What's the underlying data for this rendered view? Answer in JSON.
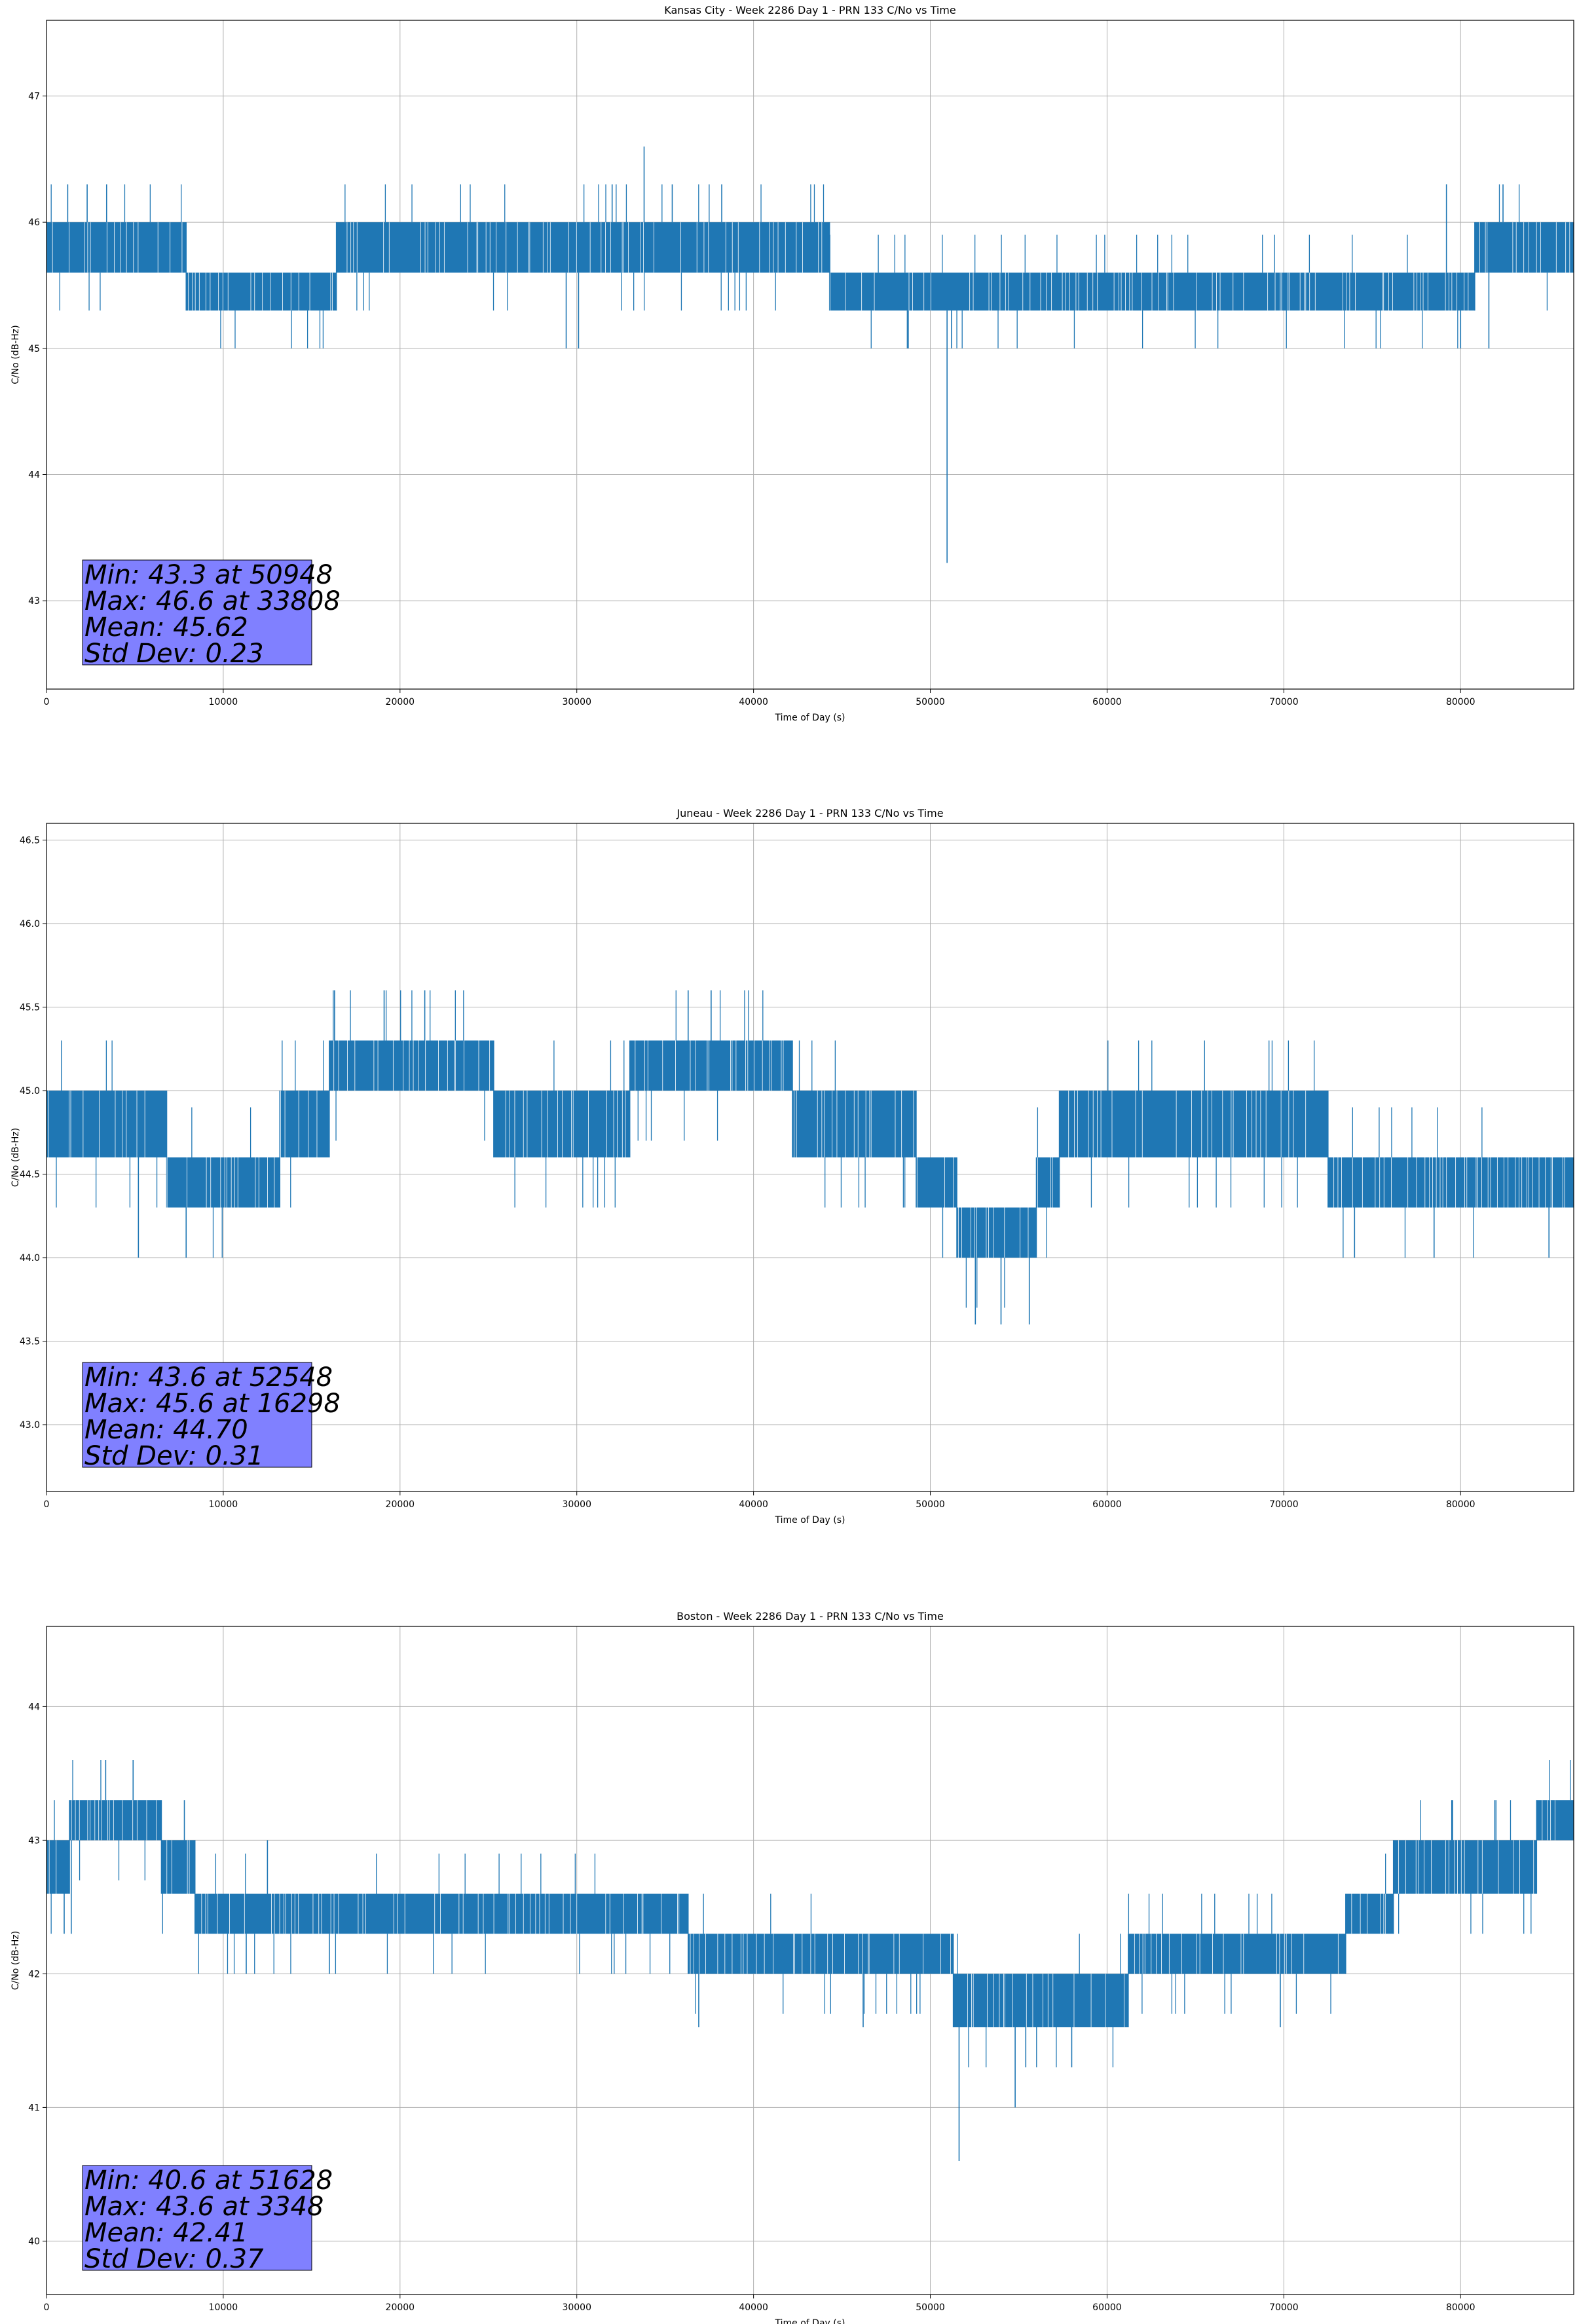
{
  "chart_data": [
    {
      "type": "line",
      "title": "Kansas City - Week 2286 Day 1 - PRN 133 C/No vs Time",
      "xlabel": "Time of Day (s)",
      "ylabel": "C/No (dB-Hz)",
      "xlim": [
        0,
        86400
      ],
      "ylim": [
        42.3,
        47.6
      ],
      "xticks": [
        0,
        10000,
        20000,
        30000,
        40000,
        50000,
        60000,
        70000,
        80000
      ],
      "yticks": [
        43,
        44,
        45,
        46,
        47
      ],
      "ytick_labels": [
        "43",
        "44",
        "45",
        "46",
        "47"
      ],
      "grid": true,
      "color": "#1f77b4",
      "band_segments": [
        {
          "x": [
            0,
            7900
          ],
          "low": 45.6,
          "high": 46.0
        },
        {
          "x": [
            7900,
            16400
          ],
          "low": 45.3,
          "high": 45.6
        },
        {
          "x": [
            16400,
            44300
          ],
          "low": 45.6,
          "high": 46.0
        },
        {
          "x": [
            44300,
            80800
          ],
          "low": 45.3,
          "high": 45.6
        },
        {
          "x": [
            80800,
            86400
          ],
          "low": 45.6,
          "high": 46.0
        }
      ],
      "spikes": [
        {
          "x": 50948,
          "y": 43.3
        },
        {
          "x": 33808,
          "y": 46.6
        },
        {
          "x": 29400,
          "y": 45.0
        },
        {
          "x": 30100,
          "y": 45.0
        },
        {
          "x": 48700,
          "y": 45.0
        },
        {
          "x": 51200,
          "y": 45.0
        },
        {
          "x": 80000,
          "y": 45.0
        },
        {
          "x": 81600,
          "y": 45.0
        },
        {
          "x": 1200,
          "y": 46.3
        },
        {
          "x": 2300,
          "y": 46.3
        },
        {
          "x": 3400,
          "y": 46.3
        },
        {
          "x": 32000,
          "y": 46.3
        },
        {
          "x": 35400,
          "y": 46.3
        },
        {
          "x": 38200,
          "y": 46.3
        },
        {
          "x": 79200,
          "y": 46.3
        },
        {
          "x": 82400,
          "y": 46.3
        }
      ],
      "stats": {
        "min": "Min: 43.3 at 50948",
        "max": "Max: 46.6 at 33808",
        "mean": "Mean: 45.62",
        "std": "Std Dev: 0.23"
      }
    },
    {
      "type": "line",
      "title": "Juneau - Week 2286 Day 1 - PRN 133 C/No vs Time",
      "xlabel": "Time of Day (s)",
      "ylabel": "C/No (dB-Hz)",
      "xlim": [
        0,
        86400
      ],
      "ylim": [
        42.6,
        46.6
      ],
      "xticks": [
        0,
        10000,
        20000,
        30000,
        40000,
        50000,
        60000,
        70000,
        80000
      ],
      "yticks": [
        43.0,
        43.5,
        44.0,
        44.5,
        45.0,
        45.5,
        46.0,
        46.5
      ],
      "ytick_labels": [
        "43.0",
        "43.5",
        "44.0",
        "44.5",
        "45.0",
        "45.5",
        "46.0",
        "46.5"
      ],
      "grid": true,
      "color": "#1f77b4",
      "band_segments": [
        {
          "x": [
            0,
            6800
          ],
          "low": 44.6,
          "high": 45.0
        },
        {
          "x": [
            6800,
            13200
          ],
          "low": 44.3,
          "high": 44.6
        },
        {
          "x": [
            13200,
            16000
          ],
          "low": 44.6,
          "high": 45.0
        },
        {
          "x": [
            16000,
            25300
          ],
          "low": 45.0,
          "high": 45.3
        },
        {
          "x": [
            25300,
            33000
          ],
          "low": 44.6,
          "high": 45.0
        },
        {
          "x": [
            33000,
            42200
          ],
          "low": 45.0,
          "high": 45.3
        },
        {
          "x": [
            42200,
            49200
          ],
          "low": 44.6,
          "high": 45.0
        },
        {
          "x": [
            49200,
            51500
          ],
          "low": 44.3,
          "high": 44.6
        },
        {
          "x": [
            51500,
            56000
          ],
          "low": 44.0,
          "high": 44.3
        },
        {
          "x": [
            56000,
            57300
          ],
          "low": 44.3,
          "high": 44.6
        },
        {
          "x": [
            57300,
            72500
          ],
          "low": 44.6,
          "high": 45.0
        },
        {
          "x": [
            72500,
            86400
          ],
          "low": 44.3,
          "high": 44.6
        }
      ],
      "spikes": [
        {
          "x": 52548,
          "y": 43.6
        },
        {
          "x": 16298,
          "y": 45.6
        },
        {
          "x": 19100,
          "y": 45.6
        },
        {
          "x": 21400,
          "y": 45.6
        },
        {
          "x": 36300,
          "y": 45.6
        },
        {
          "x": 37600,
          "y": 45.6
        },
        {
          "x": 54000,
          "y": 43.6
        },
        {
          "x": 55600,
          "y": 43.6
        },
        {
          "x": 5200,
          "y": 44.0
        },
        {
          "x": 7900,
          "y": 44.0
        },
        {
          "x": 74000,
          "y": 44.0
        },
        {
          "x": 78500,
          "y": 44.0
        },
        {
          "x": 85000,
          "y": 44.0
        }
      ],
      "stats": {
        "min": "Min: 43.6 at 52548",
        "max": "Max: 45.6 at 16298",
        "mean": "Mean: 44.70",
        "std": "Std Dev: 0.31"
      }
    },
    {
      "type": "line",
      "title": "Boston - Week 2286 Day 1 - PRN 133 C/No vs Time",
      "xlabel": "Time of Day (s)",
      "ylabel": "C/No (dB-Hz)",
      "xlim": [
        0,
        86400
      ],
      "ylim": [
        39.6,
        44.6
      ],
      "xticks": [
        0,
        10000,
        20000,
        30000,
        40000,
        50000,
        60000,
        70000,
        80000
      ],
      "yticks": [
        40,
        41,
        42,
        43,
        44
      ],
      "ytick_labels": [
        "40",
        "41",
        "42",
        "43",
        "44"
      ],
      "grid": true,
      "color": "#1f77b4",
      "band_segments": [
        {
          "x": [
            0,
            1300
          ],
          "low": 42.6,
          "high": 43.0
        },
        {
          "x": [
            1300,
            6500
          ],
          "low": 43.0,
          "high": 43.3
        },
        {
          "x": [
            6500,
            8400
          ],
          "low": 42.6,
          "high": 43.0
        },
        {
          "x": [
            8400,
            36300
          ],
          "low": 42.3,
          "high": 42.6
        },
        {
          "x": [
            36300,
            51300
          ],
          "low": 42.0,
          "high": 42.3
        },
        {
          "x": [
            51300,
            61200
          ],
          "low": 41.6,
          "high": 42.0
        },
        {
          "x": [
            61200,
            73500
          ],
          "low": 42.0,
          "high": 42.3
        },
        {
          "x": [
            73500,
            76200
          ],
          "low": 42.3,
          "high": 42.6
        },
        {
          "x": [
            76200,
            84300
          ],
          "low": 42.6,
          "high": 43.0
        },
        {
          "x": [
            84300,
            86400
          ],
          "low": 43.0,
          "high": 43.3
        }
      ],
      "spikes": [
        {
          "x": 51628,
          "y": 40.6
        },
        {
          "x": 3348,
          "y": 43.6
        },
        {
          "x": 4900,
          "y": 43.6
        },
        {
          "x": 54800,
          "y": 41.0
        },
        {
          "x": 55400,
          "y": 41.3
        },
        {
          "x": 58000,
          "y": 41.3
        },
        {
          "x": 36900,
          "y": 41.6
        },
        {
          "x": 46200,
          "y": 41.6
        },
        {
          "x": 69800,
          "y": 41.6
        },
        {
          "x": 1000,
          "y": 42.3
        },
        {
          "x": 1400,
          "y": 42.3
        },
        {
          "x": 11300,
          "y": 42.0
        },
        {
          "x": 16000,
          "y": 42.0
        },
        {
          "x": 7800,
          "y": 43.3
        },
        {
          "x": 12500,
          "y": 43.0
        },
        {
          "x": 79500,
          "y": 43.3
        },
        {
          "x": 82000,
          "y": 43.3
        }
      ],
      "stats": {
        "min": "Min: 40.6 at 51628",
        "max": "Max: 43.6 at 3348",
        "mean": "Mean: 42.41",
        "std": "Std Dev: 0.37"
      }
    }
  ]
}
